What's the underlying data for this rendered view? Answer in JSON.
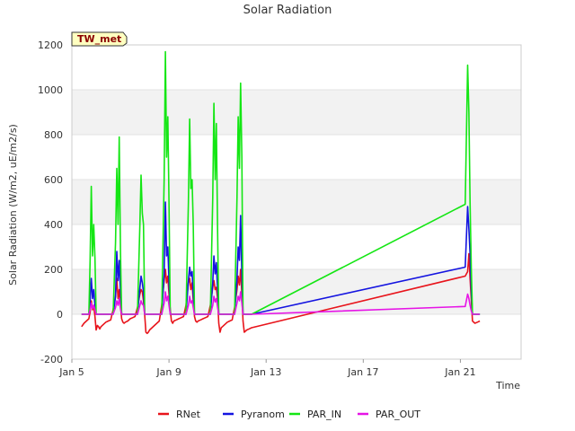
{
  "chart_data": {
    "type": "line",
    "title": "Solar Radiation",
    "xlabel": "Time",
    "ylabel": "Solar Radiation (W/m2, uE/m2/s)",
    "badge": "TW_met",
    "xlim": [
      5.0,
      23.5
    ],
    "ylim": [
      -200,
      1200
    ],
    "x_ticks": [
      5,
      9,
      13,
      17,
      21
    ],
    "x_tick_labels": [
      "Jan 5",
      "Jan 9",
      "Jan 13",
      "Jan 17",
      "Jan 21"
    ],
    "y_ticks": [
      -200,
      0,
      200,
      400,
      600,
      800,
      1000,
      1200
    ],
    "y_tick_labels": [
      "-200",
      "0",
      "200",
      "400",
      "600",
      "800",
      "1000",
      "1200"
    ],
    "grid": true,
    "legend_position": "bottom-center",
    "series": [
      {
        "name": "RNet",
        "color": "#e8141b",
        "x": [
          5.4,
          5.5,
          5.6,
          5.7,
          5.75,
          5.8,
          5.85,
          5.9,
          5.95,
          6.0,
          6.05,
          6.1,
          6.15,
          6.2,
          6.3,
          6.4,
          6.5,
          6.6,
          6.7,
          6.8,
          6.85,
          6.9,
          6.95,
          7.0,
          7.05,
          7.1,
          7.15,
          7.2,
          7.3,
          7.4,
          7.5,
          7.6,
          7.7,
          7.8,
          7.85,
          7.9,
          7.95,
          8.0,
          8.05,
          8.1,
          8.15,
          8.2,
          8.3,
          8.4,
          8.5,
          8.6,
          8.7,
          8.8,
          8.85,
          8.9,
          8.95,
          9.0,
          9.05,
          9.1,
          9.15,
          9.2,
          9.3,
          9.4,
          9.5,
          9.6,
          9.7,
          9.8,
          9.85,
          9.9,
          9.95,
          10.0,
          10.05,
          10.1,
          10.15,
          10.2,
          10.3,
          10.4,
          10.5,
          10.6,
          10.7,
          10.8,
          10.85,
          10.9,
          10.95,
          11.0,
          11.05,
          11.1,
          11.15,
          11.2,
          11.3,
          11.4,
          11.5,
          11.6,
          11.7,
          11.8,
          11.85,
          11.9,
          11.95,
          12.0,
          12.05,
          12.1,
          12.15,
          12.2,
          12.3,
          12.4,
          21.2,
          21.3,
          21.35,
          21.4,
          21.45,
          21.5,
          21.6,
          21.7,
          21.8
        ],
        "y": [
          -55,
          -40,
          -30,
          -20,
          10,
          60,
          20,
          40,
          -10,
          -70,
          -50,
          -55,
          -65,
          -55,
          -45,
          -35,
          -30,
          -25,
          20,
          80,
          160,
          70,
          110,
          40,
          -20,
          -35,
          -40,
          -35,
          -30,
          -20,
          -15,
          -10,
          30,
          90,
          110,
          100,
          60,
          -5,
          -80,
          -85,
          -80,
          -70,
          -60,
          -50,
          -40,
          -30,
          40,
          150,
          200,
          140,
          170,
          90,
          20,
          -30,
          -40,
          -30,
          -25,
          -20,
          -15,
          -10,
          40,
          140,
          160,
          110,
          140,
          60,
          -10,
          -30,
          -35,
          -30,
          -25,
          -20,
          -15,
          -10,
          40,
          120,
          150,
          110,
          120,
          70,
          -40,
          -80,
          -60,
          -55,
          -45,
          -35,
          -30,
          -25,
          30,
          110,
          170,
          130,
          200,
          90,
          -30,
          -80,
          -75,
          -70,
          -65,
          -60,
          170,
          190,
          270,
          160,
          60,
          -30,
          -40,
          -35,
          -30
        ]
      },
      {
        "name": "Pyranom",
        "color": "#1414e0",
        "x": [
          5.4,
          5.5,
          5.6,
          5.7,
          5.75,
          5.8,
          5.85,
          5.9,
          5.95,
          6.0,
          6.05,
          6.1,
          6.2,
          6.3,
          6.4,
          6.5,
          6.6,
          6.7,
          6.8,
          6.85,
          6.9,
          6.95,
          7.0,
          7.05,
          7.1,
          7.2,
          7.3,
          7.4,
          7.5,
          7.6,
          7.7,
          7.8,
          7.85,
          7.9,
          7.95,
          8.0,
          8.05,
          8.1,
          8.2,
          8.3,
          8.4,
          8.5,
          8.6,
          8.7,
          8.8,
          8.85,
          8.9,
          8.95,
          9.0,
          9.05,
          9.1,
          9.2,
          9.3,
          9.4,
          9.5,
          9.6,
          9.7,
          9.8,
          9.85,
          9.9,
          9.95,
          10.0,
          10.05,
          10.1,
          10.2,
          10.3,
          10.4,
          10.5,
          10.6,
          10.7,
          10.8,
          10.85,
          10.9,
          10.95,
          11.0,
          11.05,
          11.1,
          11.2,
          11.3,
          11.4,
          11.5,
          11.6,
          11.7,
          11.8,
          11.85,
          11.9,
          11.95,
          12.0,
          12.05,
          12.1,
          12.2,
          12.3,
          12.4,
          21.2,
          21.3,
          21.35,
          21.4,
          21.45,
          21.5,
          21.6,
          21.7,
          21.8
        ],
        "y": [
          0,
          0,
          0,
          0,
          60,
          160,
          70,
          110,
          40,
          0,
          0,
          0,
          0,
          0,
          0,
          0,
          0,
          0,
          80,
          280,
          150,
          240,
          100,
          0,
          0,
          0,
          0,
          0,
          0,
          0,
          0,
          120,
          170,
          140,
          100,
          0,
          0,
          0,
          0,
          0,
          0,
          0,
          0,
          0,
          180,
          500,
          260,
          300,
          150,
          0,
          0,
          0,
          0,
          0,
          0,
          0,
          0,
          150,
          210,
          170,
          190,
          90,
          0,
          0,
          0,
          0,
          0,
          0,
          0,
          0,
          140,
          260,
          180,
          230,
          110,
          0,
          0,
          0,
          0,
          0,
          0,
          0,
          0,
          160,
          300,
          240,
          440,
          170,
          0,
          0,
          0,
          0,
          0,
          210,
          480,
          380,
          270,
          100,
          0,
          0,
          0,
          0
        ]
      },
      {
        "name": "PAR_IN",
        "color": "#14e614",
        "x": [
          5.4,
          5.5,
          5.6,
          5.7,
          5.75,
          5.8,
          5.85,
          5.9,
          5.95,
          6.0,
          6.05,
          6.1,
          6.2,
          6.3,
          6.4,
          6.5,
          6.6,
          6.7,
          6.8,
          6.85,
          6.9,
          6.95,
          7.0,
          7.05,
          7.1,
          7.2,
          7.3,
          7.4,
          7.5,
          7.6,
          7.7,
          7.8,
          7.85,
          7.9,
          7.95,
          8.0,
          8.05,
          8.1,
          8.2,
          8.3,
          8.4,
          8.5,
          8.6,
          8.7,
          8.8,
          8.85,
          8.9,
          8.95,
          9.0,
          9.05,
          9.1,
          9.2,
          9.3,
          9.4,
          9.5,
          9.6,
          9.7,
          9.8,
          9.85,
          9.9,
          9.95,
          10.0,
          10.05,
          10.1,
          10.2,
          10.3,
          10.4,
          10.5,
          10.6,
          10.7,
          10.8,
          10.85,
          10.9,
          10.95,
          11.0,
          11.05,
          11.1,
          11.2,
          11.3,
          11.4,
          11.5,
          11.6,
          11.7,
          11.8,
          11.85,
          11.9,
          11.95,
          12.0,
          12.05,
          12.1,
          12.2,
          12.3,
          12.4,
          21.2,
          21.3,
          21.35,
          21.4,
          21.45,
          21.5,
          21.6,
          21.7,
          21.8
        ],
        "y": [
          0,
          0,
          0,
          0,
          240,
          570,
          260,
          400,
          250,
          0,
          0,
          0,
          0,
          0,
          0,
          0,
          0,
          0,
          320,
          650,
          400,
          790,
          280,
          0,
          0,
          0,
          0,
          0,
          0,
          0,
          0,
          400,
          620,
          450,
          400,
          0,
          0,
          0,
          0,
          0,
          0,
          0,
          0,
          0,
          600,
          1170,
          700,
          880,
          500,
          0,
          0,
          0,
          0,
          0,
          0,
          0,
          0,
          500,
          870,
          560,
          600,
          400,
          0,
          0,
          0,
          0,
          0,
          0,
          0,
          0,
          520,
          940,
          600,
          850,
          370,
          0,
          0,
          0,
          0,
          0,
          0,
          0,
          0,
          520,
          880,
          650,
          1030,
          700,
          0,
          0,
          0,
          0,
          0,
          490,
          1110,
          900,
          500,
          200,
          0,
          0,
          0,
          0
        ]
      },
      {
        "name": "PAR_OUT",
        "color": "#e614e6",
        "x": [
          5.4,
          5.5,
          5.6,
          5.7,
          5.75,
          5.8,
          5.85,
          5.9,
          5.95,
          6.0,
          6.05,
          6.1,
          6.2,
          6.3,
          6.4,
          6.5,
          6.6,
          6.7,
          6.8,
          6.85,
          6.9,
          6.95,
          7.0,
          7.05,
          7.1,
          7.2,
          7.3,
          7.4,
          7.5,
          7.6,
          7.7,
          7.8,
          7.85,
          7.9,
          7.95,
          8.0,
          8.05,
          8.1,
          8.2,
          8.3,
          8.4,
          8.5,
          8.6,
          8.7,
          8.8,
          8.85,
          8.9,
          8.95,
          9.0,
          9.05,
          9.1,
          9.2,
          9.3,
          9.4,
          9.5,
          9.6,
          9.7,
          9.8,
          9.85,
          9.9,
          9.95,
          10.0,
          10.05,
          10.1,
          10.2,
          10.3,
          10.4,
          10.5,
          10.6,
          10.7,
          10.8,
          10.85,
          10.9,
          10.95,
          11.0,
          11.05,
          11.1,
          11.2,
          11.3,
          11.4,
          11.5,
          11.6,
          11.7,
          11.8,
          11.85,
          11.9,
          11.95,
          12.0,
          12.05,
          12.1,
          12.2,
          12.3,
          12.4,
          21.2,
          21.3,
          21.35,
          21.4,
          21.45,
          21.5,
          21.6,
          21.7,
          21.8
        ],
        "y": [
          0,
          0,
          0,
          0,
          20,
          50,
          25,
          40,
          20,
          0,
          0,
          0,
          0,
          0,
          0,
          0,
          0,
          0,
          30,
          60,
          40,
          70,
          25,
          0,
          0,
          0,
          0,
          0,
          0,
          0,
          0,
          40,
          60,
          45,
          40,
          0,
          0,
          0,
          0,
          0,
          0,
          0,
          0,
          0,
          50,
          100,
          60,
          80,
          40,
          0,
          0,
          0,
          0,
          0,
          0,
          0,
          0,
          40,
          80,
          50,
          60,
          30,
          0,
          0,
          0,
          0,
          0,
          0,
          0,
          0,
          40,
          80,
          55,
          70,
          30,
          0,
          0,
          0,
          0,
          0,
          0,
          0,
          0,
          50,
          80,
          60,
          100,
          50,
          0,
          0,
          0,
          0,
          0,
          35,
          90,
          70,
          40,
          15,
          0,
          0,
          0,
          0
        ]
      }
    ]
  }
}
